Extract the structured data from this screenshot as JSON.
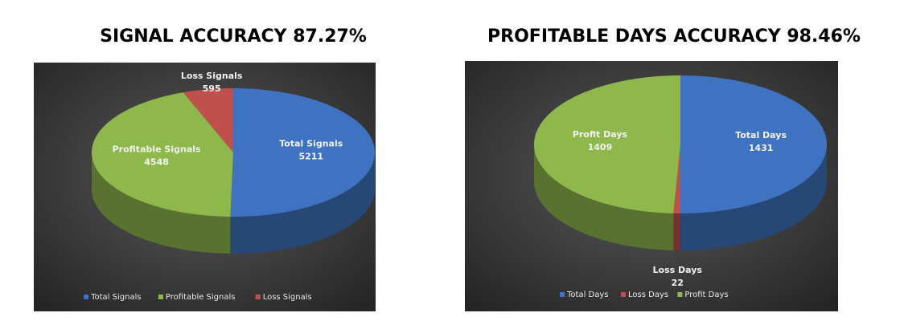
{
  "chart_data": [
    {
      "type": "pie",
      "title": "SIGNAL ACCURACY 87.27%",
      "categories": [
        "Total Signals",
        "Profitable Signals",
        "Loss Signals"
      ],
      "values": [
        5211,
        4548,
        595
      ],
      "colors": [
        "#3f72c0",
        "#8fb84c",
        "#c0504d"
      ],
      "legend": "bottom"
    },
    {
      "type": "pie",
      "title": "PROFITABLE DAYS ACCURACY 98.46%",
      "categories": [
        "Total Days",
        "Loss Days",
        "Profit Days"
      ],
      "values": [
        1431,
        22,
        1409
      ],
      "colors": [
        "#3f72c0",
        "#c0504d",
        "#8fb84c"
      ],
      "legend": "bottom"
    }
  ]
}
